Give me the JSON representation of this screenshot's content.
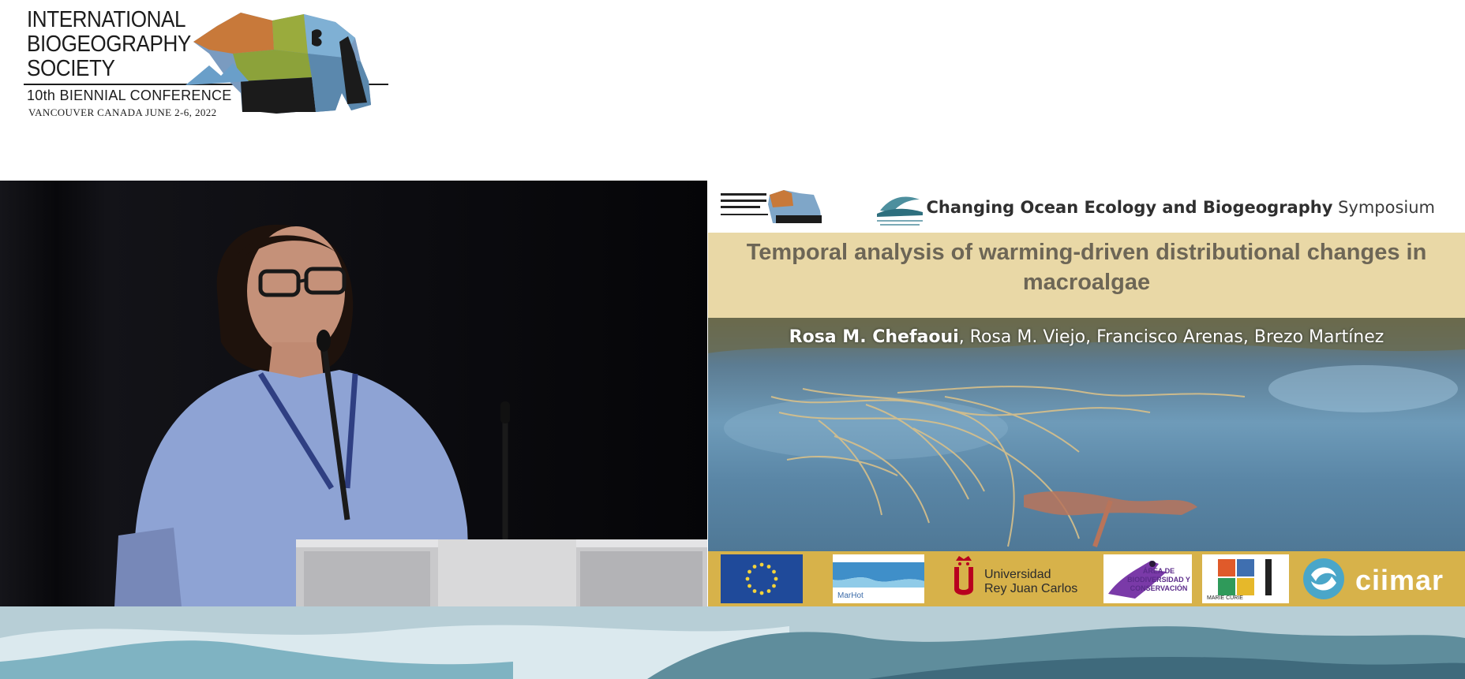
{
  "header": {
    "logo_lines": [
      "INTERNATIONAL",
      "BIOGEOGRAPHY",
      "SOCIETY"
    ],
    "conference": "10th BIENNIAL CONFERENCE",
    "location": "VANCOUVER CANADA   JUNE 2-6, 2022"
  },
  "slide": {
    "symposium_bold": "Changing Ocean Ecology and Biogeography",
    "symposium_rest": " Symposium",
    "title_line1": "Temporal analysis of warming-driven distributional changes in",
    "title_line2": "macroalgae",
    "presenter": "Rosa M. Chefaoui",
    "coauthors": ", Rosa M. Viejo, Francisco Arenas, Brezo Martínez",
    "sponsors": {
      "marhot": "MarHot",
      "urjc_line1": "Universidad",
      "urjc_line2": "Rey Juan Carlos",
      "area": "ÁREA DE BIODIVERSIDAD Y CONSERVACIÓN",
      "marie": "MARIE CURIE",
      "ciimar": "ciimar"
    }
  },
  "colors": {
    "title_band": "#e9d8a6",
    "logo_bar": "#d7b24a",
    "video_bg": "#06070a"
  }
}
